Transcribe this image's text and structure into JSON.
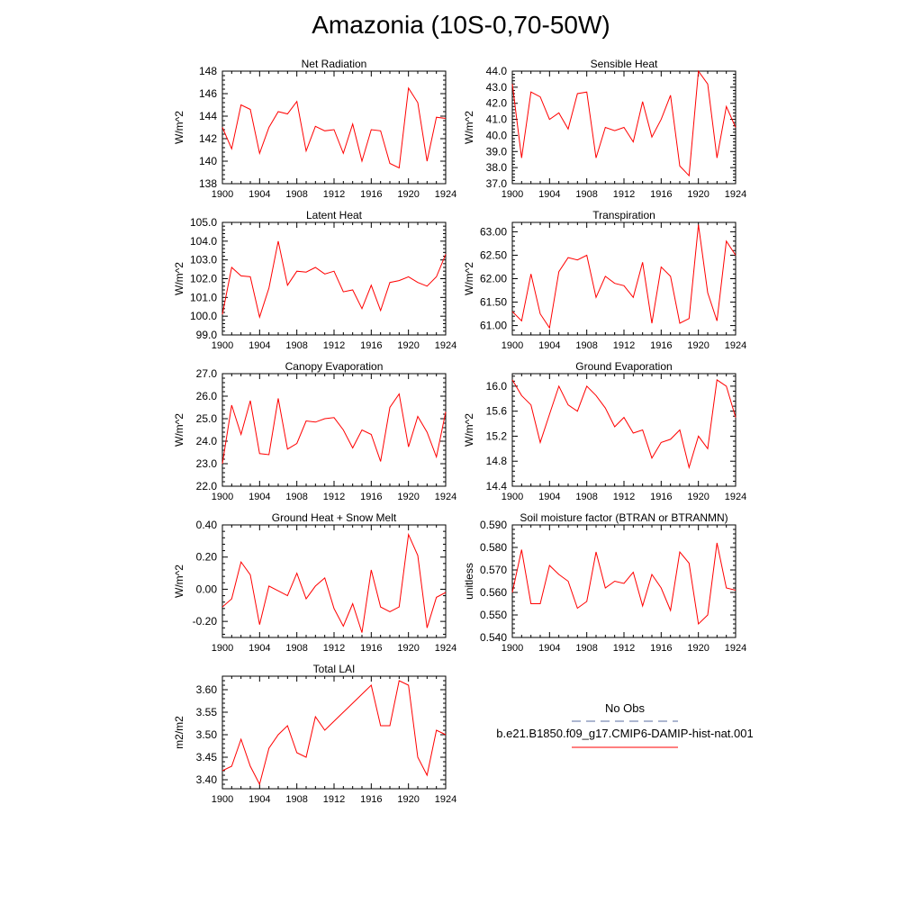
{
  "title": "Amazonia (10S-0,70-50W)",
  "colors": {
    "model": "#ff0000",
    "obs": "#5a6ea0",
    "axis": "#000000"
  },
  "legend": {
    "obs_label": "No Obs",
    "model_label": "b.e21.B1850.f09_g17.CMIP6-DAMIP-hist-nat.001"
  },
  "chart_data": [
    {
      "type": "line",
      "title": "Net Radiation",
      "ylabel": "W/m^2",
      "xlim": [
        1900,
        1924
      ],
      "ylim": [
        138,
        148
      ],
      "xticks": [
        "1900",
        "1904",
        "1908",
        "1912",
        "1916",
        "1920",
        "1924"
      ],
      "yticks": [
        "138",
        "140",
        "142",
        "144",
        "146",
        "148"
      ],
      "x": [
        1900,
        1901,
        1902,
        1903,
        1904,
        1905,
        1906,
        1907,
        1908,
        1909,
        1910,
        1911,
        1912,
        1913,
        1914,
        1915,
        1916,
        1917,
        1918,
        1919,
        1920,
        1921,
        1922,
        1923,
        1924
      ],
      "series": [
        {
          "values": [
            143.0,
            141.1,
            145.0,
            144.6,
            140.7,
            143.0,
            144.4,
            144.2,
            145.3,
            140.9,
            143.1,
            142.7,
            142.8,
            140.7,
            143.3,
            140.0,
            142.8,
            142.7,
            139.8,
            139.4,
            146.5,
            145.2,
            140.0,
            143.9,
            143.8
          ]
        }
      ]
    },
    {
      "type": "line",
      "title": "Sensible Heat",
      "ylabel": "W/m^2",
      "xlim": [
        1900,
        1924
      ],
      "ylim": [
        37.0,
        44.0
      ],
      "xticks": [
        "1900",
        "1904",
        "1908",
        "1912",
        "1916",
        "1920",
        "1924"
      ],
      "yticks": [
        "37.0",
        "38.0",
        "39.0",
        "40.0",
        "41.0",
        "42.0",
        "43.0",
        "44.0"
      ],
      "x": [
        1900,
        1901,
        1902,
        1903,
        1904,
        1905,
        1906,
        1907,
        1908,
        1909,
        1910,
        1911,
        1912,
        1913,
        1914,
        1915,
        1916,
        1917,
        1918,
        1919,
        1920,
        1921,
        1922,
        1923,
        1924
      ],
      "series": [
        {
          "values": [
            43.2,
            38.6,
            42.7,
            42.4,
            41.0,
            41.4,
            40.4,
            42.6,
            42.7,
            38.6,
            40.5,
            40.3,
            40.5,
            39.6,
            42.1,
            39.9,
            41.0,
            42.5,
            38.1,
            37.5,
            44.0,
            43.2,
            38.6,
            41.8,
            40.5
          ]
        }
      ]
    },
    {
      "type": "line",
      "title": "Latent Heat",
      "ylabel": "W/m^2",
      "xlim": [
        1900,
        1924
      ],
      "ylim": [
        99.0,
        105.0
      ],
      "xticks": [
        "1900",
        "1904",
        "1908",
        "1912",
        "1916",
        "1920",
        "1924"
      ],
      "yticks": [
        "99.0",
        "100.0",
        "101.0",
        "102.0",
        "103.0",
        "104.0",
        "105.0"
      ],
      "x": [
        1900,
        1901,
        1902,
        1903,
        1904,
        1905,
        1906,
        1907,
        1908,
        1909,
        1910,
        1911,
        1912,
        1913,
        1914,
        1915,
        1916,
        1917,
        1918,
        1919,
        1920,
        1921,
        1922,
        1923,
        1924
      ],
      "series": [
        {
          "values": [
            100.1,
            102.6,
            102.15,
            102.1,
            99.95,
            101.5,
            104.0,
            101.65,
            102.4,
            102.35,
            102.6,
            102.25,
            102.4,
            101.3,
            101.4,
            100.4,
            101.65,
            100.3,
            101.8,
            101.9,
            102.1,
            101.8,
            101.6,
            102.1,
            103.3
          ]
        }
      ]
    },
    {
      "type": "line",
      "title": "Transpiration",
      "ylabel": "W/m^2",
      "xlim": [
        1900,
        1924
      ],
      "ylim": [
        60.8,
        63.2
      ],
      "xticks": [
        "1900",
        "1904",
        "1908",
        "1912",
        "1916",
        "1920",
        "1924"
      ],
      "yticks": [
        "61.00",
        "61.50",
        "62.00",
        "62.50",
        "63.00"
      ],
      "x": [
        1900,
        1901,
        1902,
        1903,
        1904,
        1905,
        1906,
        1907,
        1908,
        1909,
        1910,
        1911,
        1912,
        1913,
        1914,
        1915,
        1916,
        1917,
        1918,
        1919,
        1920,
        1921,
        1922,
        1923,
        1924
      ],
      "series": [
        {
          "values": [
            61.3,
            61.1,
            62.1,
            61.25,
            60.95,
            62.15,
            62.45,
            62.4,
            62.5,
            61.6,
            62.05,
            61.9,
            61.85,
            61.6,
            62.35,
            61.05,
            62.25,
            62.05,
            61.05,
            61.15,
            63.15,
            61.7,
            61.1,
            62.8,
            62.5
          ]
        }
      ]
    },
    {
      "type": "line",
      "title": "Canopy Evaporation",
      "ylabel": "W/m^2",
      "xlim": [
        1900,
        1924
      ],
      "ylim": [
        22.0,
        27.0
      ],
      "xticks": [
        "1900",
        "1904",
        "1908",
        "1912",
        "1916",
        "1920",
        "1924"
      ],
      "yticks": [
        "22.0",
        "23.0",
        "24.0",
        "25.0",
        "26.0",
        "27.0"
      ],
      "x": [
        1900,
        1901,
        1902,
        1903,
        1904,
        1905,
        1906,
        1907,
        1908,
        1909,
        1910,
        1911,
        1912,
        1913,
        1914,
        1915,
        1916,
        1917,
        1918,
        1919,
        1920,
        1921,
        1922,
        1923,
        1924
      ],
      "series": [
        {
          "values": [
            23.0,
            25.6,
            24.3,
            25.8,
            23.45,
            23.4,
            25.9,
            23.65,
            23.9,
            24.9,
            24.85,
            25.0,
            25.05,
            24.5,
            23.7,
            24.5,
            24.3,
            23.1,
            25.5,
            26.1,
            23.75,
            25.1,
            24.4,
            23.3,
            25.3
          ]
        }
      ]
    },
    {
      "type": "line",
      "title": "Ground Evaporation",
      "ylabel": "W/m^2",
      "xlim": [
        1900,
        1924
      ],
      "ylim": [
        14.4,
        16.2
      ],
      "xticks": [
        "1900",
        "1904",
        "1908",
        "1912",
        "1916",
        "1920",
        "1924"
      ],
      "yticks": [
        "14.4",
        "14.8",
        "15.2",
        "15.6",
        "16.0"
      ],
      "x": [
        1900,
        1901,
        1902,
        1903,
        1904,
        1905,
        1906,
        1907,
        1908,
        1909,
        1910,
        1911,
        1912,
        1913,
        1914,
        1915,
        1916,
        1917,
        1918,
        1919,
        1920,
        1921,
        1922,
        1923,
        1924
      ],
      "series": [
        {
          "values": [
            16.1,
            15.85,
            15.7,
            15.1,
            15.55,
            16.0,
            15.7,
            15.6,
            16.0,
            15.85,
            15.65,
            15.35,
            15.5,
            15.25,
            15.3,
            14.85,
            15.1,
            15.15,
            15.3,
            14.7,
            15.2,
            15.0,
            16.1,
            16.0,
            15.5
          ]
        }
      ]
    },
    {
      "type": "line",
      "title": "Ground Heat + Snow Melt",
      "ylabel": "W/m^2",
      "xlim": [
        1900,
        1924
      ],
      "ylim": [
        -0.3,
        0.4
      ],
      "xticks": [
        "1900",
        "1904",
        "1908",
        "1912",
        "1916",
        "1920",
        "1924"
      ],
      "yticks": [
        "-0.20",
        "0.00",
        "0.20",
        "0.40"
      ],
      "x": [
        1900,
        1901,
        1902,
        1903,
        1904,
        1905,
        1906,
        1907,
        1908,
        1909,
        1910,
        1911,
        1912,
        1913,
        1914,
        1915,
        1916,
        1917,
        1918,
        1919,
        1920,
        1921,
        1922,
        1923,
        1924
      ],
      "series": [
        {
          "values": [
            -0.11,
            -0.06,
            0.17,
            0.09,
            -0.22,
            0.02,
            -0.01,
            -0.04,
            0.1,
            -0.06,
            0.02,
            0.07,
            -0.12,
            -0.23,
            -0.09,
            -0.27,
            0.12,
            -0.11,
            -0.14,
            -0.11,
            0.34,
            0.21,
            -0.24,
            -0.05,
            -0.02
          ]
        }
      ]
    },
    {
      "type": "line",
      "title": "Soil moisture factor (BTRAN or BTRANMN)",
      "ylabel": "unitless",
      "xlim": [
        1900,
        1924
      ],
      "ylim": [
        0.54,
        0.59
      ],
      "xticks": [
        "1900",
        "1904",
        "1908",
        "1912",
        "1916",
        "1920",
        "1924"
      ],
      "yticks": [
        "0.540",
        "0.550",
        "0.560",
        "0.570",
        "0.580",
        "0.590"
      ],
      "x": [
        1900,
        1901,
        1902,
        1903,
        1904,
        1905,
        1906,
        1907,
        1908,
        1909,
        1910,
        1911,
        1912,
        1913,
        1914,
        1915,
        1916,
        1917,
        1918,
        1919,
        1920,
        1921,
        1922,
        1923,
        1924
      ],
      "series": [
        {
          "values": [
            0.56,
            0.579,
            0.555,
            0.555,
            0.572,
            0.568,
            0.565,
            0.553,
            0.556,
            0.578,
            0.562,
            0.565,
            0.564,
            0.569,
            0.554,
            0.568,
            0.562,
            0.552,
            0.578,
            0.573,
            0.546,
            0.55,
            0.582,
            0.562,
            0.561
          ]
        }
      ]
    },
    {
      "type": "line",
      "title": "Total LAI",
      "ylabel": "m2/m2",
      "xlim": [
        1900,
        1924
      ],
      "ylim": [
        3.38,
        3.63
      ],
      "xticks": [
        "1900",
        "1904",
        "1908",
        "1912",
        "1916",
        "1920",
        "1924"
      ],
      "yticks": [
        "3.40",
        "3.45",
        "3.50",
        "3.55",
        "3.60"
      ],
      "x": [
        1900,
        1901,
        1902,
        1903,
        1904,
        1905,
        1906,
        1907,
        1908,
        1909,
        1910,
        1911,
        1912,
        1913,
        1914,
        1915,
        1916,
        1917,
        1918,
        1919,
        1920,
        1921,
        1922,
        1923,
        1924
      ],
      "series": [
        {
          "values": [
            3.42,
            3.43,
            3.49,
            3.43,
            3.39,
            3.47,
            3.5,
            3.52,
            3.46,
            3.45,
            3.54,
            3.51,
            3.53,
            3.55,
            3.57,
            3.59,
            3.61,
            3.52,
            3.52,
            3.62,
            3.61,
            3.45,
            3.41,
            3.51,
            3.5
          ]
        }
      ]
    }
  ]
}
